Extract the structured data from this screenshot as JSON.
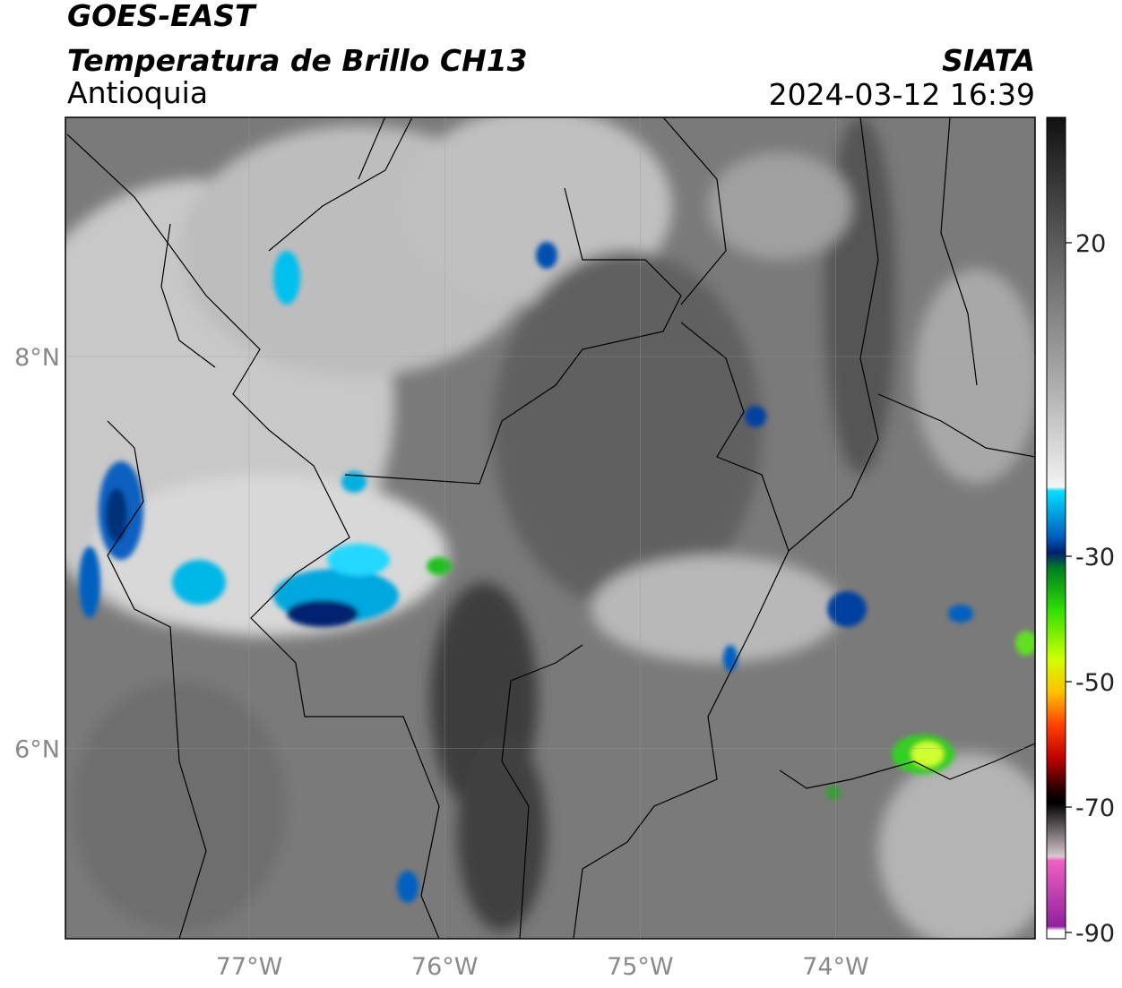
{
  "header": {
    "satellite": "GOES-EAST",
    "product": "Temperatura de Brillo CH13",
    "region": "Antioquia",
    "agency": "SIATA",
    "datetime": "2024-03-12 16:39"
  },
  "map": {
    "lon_range": [
      -77.94,
      -72.98
    ],
    "lat_range": [
      5.03,
      9.22
    ],
    "lon_ticks": [
      {
        "value": -77,
        "label": "77°W"
      },
      {
        "value": -76,
        "label": "76°W"
      },
      {
        "value": -75,
        "label": "75°W"
      },
      {
        "value": -74,
        "label": "74°W"
      }
    ],
    "lat_ticks": [
      {
        "value": 8,
        "label": "8°N"
      },
      {
        "value": 6,
        "label": "6°N"
      }
    ],
    "grid": true
  },
  "colorbar": {
    "lim": [
      -91,
      40
    ],
    "ticks": [
      20,
      -30,
      -50,
      -70,
      -90
    ]
  }
}
